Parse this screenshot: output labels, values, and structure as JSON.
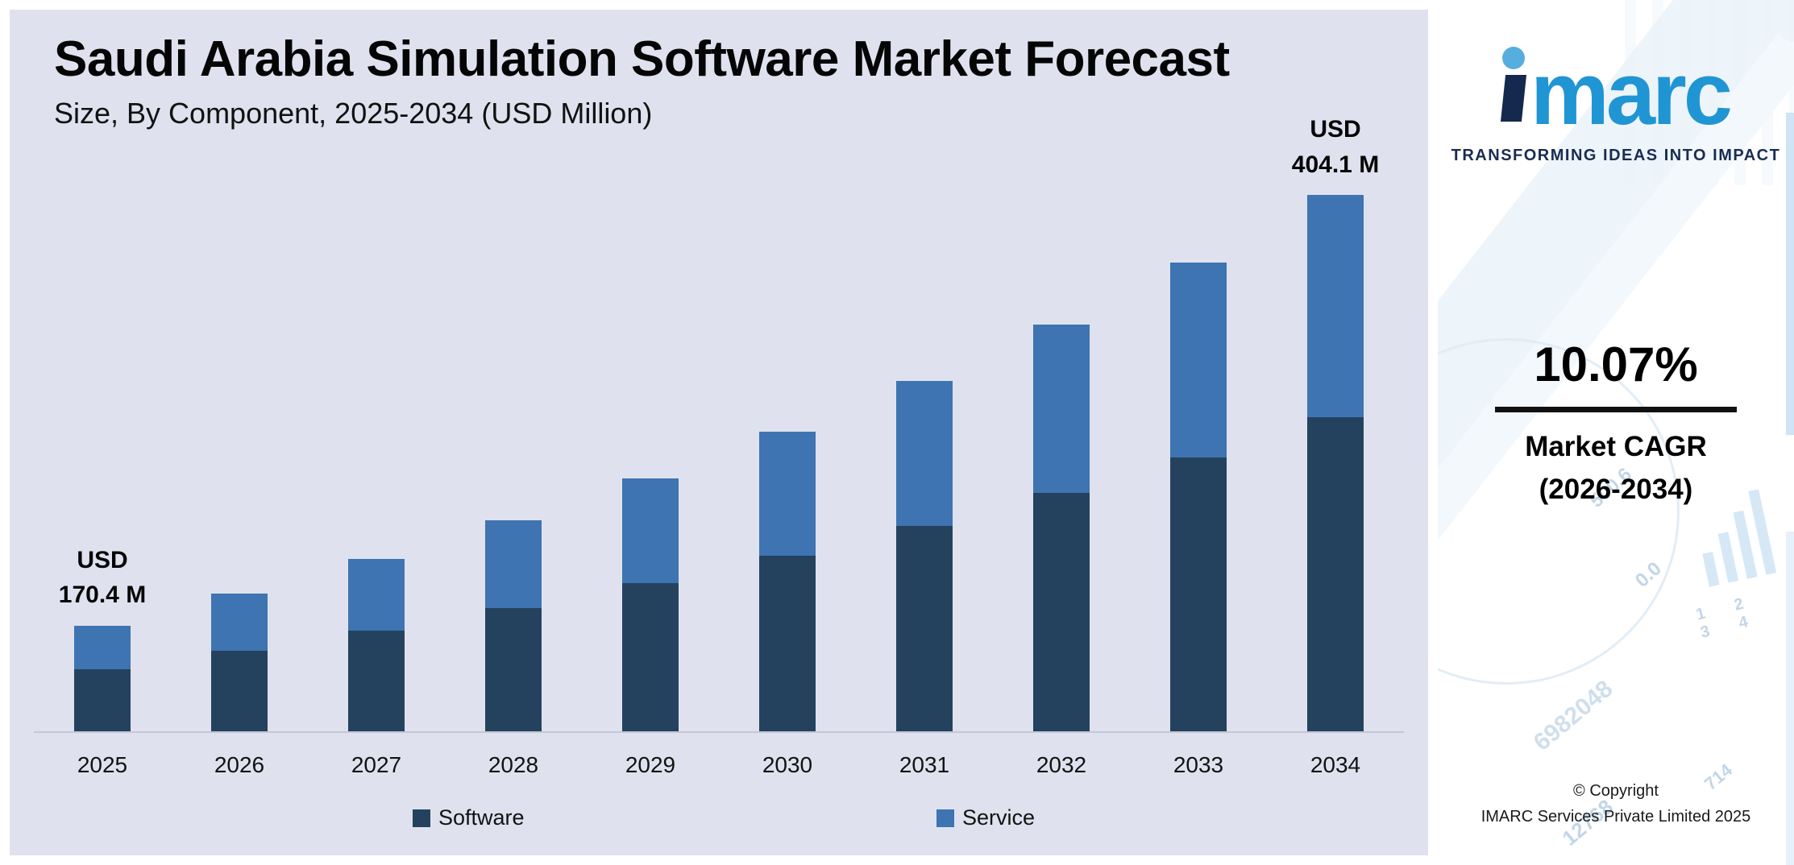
{
  "chart_data": {
    "type": "bar",
    "stacked": true,
    "title": "Saudi Arabia Simulation Software Market Forecast",
    "subtitle": "Size, By Component, 2025-2034 (USD Million)",
    "units": "USD Million",
    "categories": [
      "2025",
      "2026",
      "2027",
      "2028",
      "2029",
      "2030",
      "2031",
      "2032",
      "2033",
      "2034"
    ],
    "series": [
      {
        "name": "Software",
        "color": "#24425E",
        "values": [
          99.7,
          109.8,
          120.9,
          133.0,
          146.4,
          161.2,
          177.4,
          195.3,
          214.9,
          236.4
        ]
      },
      {
        "name": "Service",
        "color": "#3E74B1",
        "values": [
          70.7,
          77.9,
          85.7,
          94.4,
          103.9,
          114.3,
          125.8,
          138.5,
          152.5,
          167.7
        ]
      }
    ],
    "totals": [
      170.4,
      187.7,
      206.6,
      227.4,
      250.3,
      275.5,
      303.2,
      333.8,
      367.4,
      404.1
    ],
    "labeled_points": [
      {
        "category": "2025",
        "total": 170.4,
        "label": "USD 170.4 M"
      },
      {
        "category": "2034",
        "total": 404.1,
        "label": "USD 404.1 M"
      }
    ],
    "legend_position": "bottom",
    "y_axis_visible": false,
    "gridlines": false,
    "visual_axis_min": 113
  },
  "annotations": {
    "first_bar": [
      "USD",
      "170.4 M"
    ],
    "last_bar": [
      "USD",
      "404.1 M"
    ]
  },
  "sidebar": {
    "logo_word": "imarc",
    "logo_word_tail": "marc",
    "tagline": "TRANSFORMING IDEAS INTO IMPACT",
    "cagr_value": "10.07%",
    "cagr_label_line1": "Market CAGR",
    "cagr_label_line2": "(2026-2034)",
    "copyright_line1": "© Copyright",
    "copyright_line2": "IMARC Services Private Limited 2025",
    "watermarks": [
      "500.6",
      "0.0",
      "1 2 3 4",
      "6982048",
      "714",
      "12768"
    ]
  }
}
